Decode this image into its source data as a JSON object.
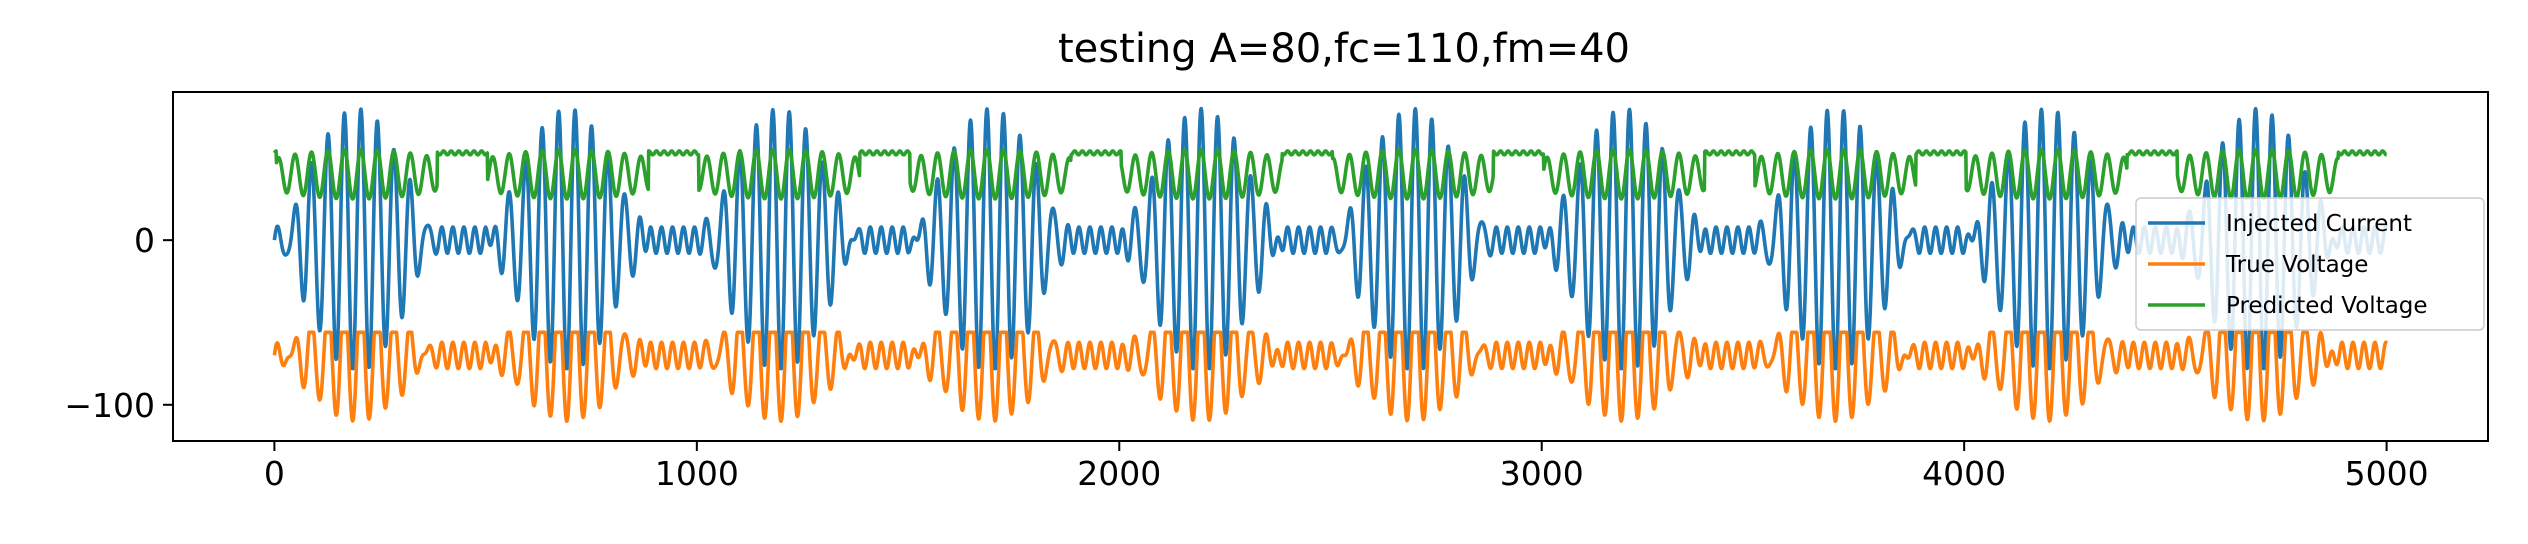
{
  "chart_data": {
    "type": "line",
    "title": "testing A=80,fc=110,fm=40",
    "xlabel": "",
    "ylabel": "",
    "xlim": [
      -240,
      5240
    ],
    "ylim": [
      -122,
      90
    ],
    "xticks": [
      0,
      1000,
      2000,
      3000,
      4000,
      5000
    ],
    "xtick_labels": [
      "0",
      "1000",
      "2000",
      "3000",
      "4000",
      "5000"
    ],
    "yticks": [
      0,
      -100
    ],
    "ytick_labels": [
      "0",
      "−100"
    ],
    "grid": false,
    "legend_position": "center-right",
    "x_range": [
      0,
      5000
    ],
    "series": [
      {
        "name": "Injected Current",
        "color": "#1f77b4",
        "model": "burst",
        "center": 0,
        "amplitude": 80,
        "carrier_period": 39,
        "envelope_period": 500,
        "quiet_level": 8,
        "active_fraction": 0.78,
        "value_range": [
          -78,
          80
        ]
      },
      {
        "name": "True Voltage",
        "color": "#ff7f0e",
        "model": "burst",
        "center": -70,
        "amplitude": 40,
        "carrier_period": 39,
        "envelope_period": 500,
        "quiet_level": 8,
        "active_fraction": 0.78,
        "value_range": [
          -110,
          -56
        ]
      },
      {
        "name": "Predicted Voltage",
        "color": "#2ca02c",
        "model": "clipped",
        "center": 40,
        "amplitude": 15,
        "carrier_period": 39,
        "envelope_period": 500,
        "quiet_level": 53,
        "active_fraction": 0.78,
        "value_range": [
          25,
          55
        ]
      }
    ]
  }
}
